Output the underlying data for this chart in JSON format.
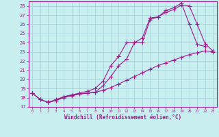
{
  "xlabel": "Windchill (Refroidissement éolien,°C)",
  "line_color": "#9B1A8A",
  "bg_color": "#C8EEF0",
  "grid_color": "#A0CED8",
  "xlim": [
    -0.5,
    23.5
  ],
  "ylim": [
    17,
    28.5
  ],
  "xticks": [
    0,
    1,
    2,
    3,
    4,
    5,
    6,
    7,
    8,
    9,
    10,
    11,
    12,
    13,
    14,
    15,
    16,
    17,
    18,
    19,
    20,
    21,
    22,
    23
  ],
  "yticks": [
    17,
    18,
    19,
    20,
    21,
    22,
    23,
    24,
    25,
    26,
    27,
    28
  ],
  "series1_x": [
    0,
    1,
    2,
    3,
    4,
    5,
    6,
    7,
    8,
    9,
    10,
    11,
    12,
    13,
    14,
    15,
    16,
    17,
    18,
    19,
    20,
    21,
    22,
    23
  ],
  "series1_y": [
    18.5,
    17.8,
    17.5,
    17.7,
    18.1,
    18.3,
    18.4,
    18.5,
    18.6,
    19.3,
    20.3,
    21.5,
    22.2,
    24.0,
    24.0,
    26.5,
    26.8,
    27.3,
    27.6,
    28.1,
    28.0,
    26.0,
    23.9,
    23.1
  ],
  "series2_x": [
    0,
    1,
    2,
    3,
    4,
    5,
    6,
    7,
    8,
    9,
    10,
    11,
    12,
    13,
    14,
    15,
    16,
    17,
    18,
    19,
    20,
    21,
    22,
    23
  ],
  "series2_y": [
    18.5,
    17.8,
    17.5,
    17.8,
    18.1,
    18.3,
    18.5,
    18.7,
    19.0,
    19.8,
    21.5,
    22.5,
    24.0,
    24.0,
    24.5,
    26.7,
    26.8,
    27.5,
    27.8,
    28.3,
    26.0,
    23.8,
    23.6,
    null
  ],
  "series3_x": [
    0,
    1,
    2,
    3,
    4,
    5,
    6,
    7,
    8,
    9,
    10,
    11,
    12,
    13,
    14,
    15,
    16,
    17,
    18,
    19,
    20,
    21,
    22,
    23
  ],
  "series3_y": [
    18.5,
    17.8,
    17.5,
    17.7,
    18.0,
    18.2,
    18.4,
    18.5,
    18.6,
    18.8,
    19.1,
    19.5,
    19.9,
    20.3,
    20.7,
    21.1,
    21.5,
    21.8,
    22.1,
    22.4,
    22.7,
    22.9,
    23.1,
    23.0
  ]
}
